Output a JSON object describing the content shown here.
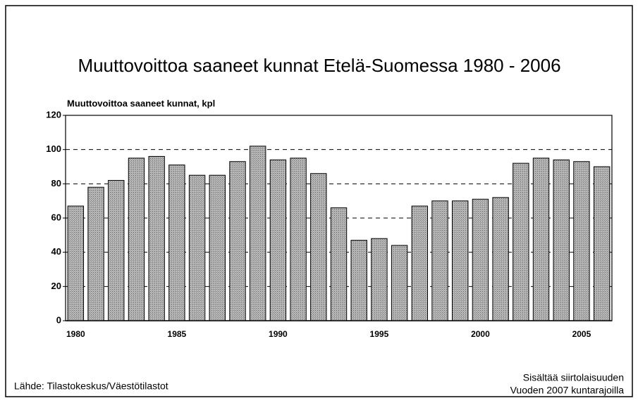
{
  "chart_data": {
    "type": "bar",
    "title": "Muuttovoittoa saaneet kunnat Etelä-Suomessa 1980 - 2006",
    "y_axis_label": "Muuttovoittoa saaneet kunnat, kpl",
    "categories": [
      "1980",
      null,
      null,
      null,
      null,
      "1985",
      null,
      null,
      null,
      null,
      "1990",
      null,
      null,
      null,
      null,
      "1995",
      null,
      null,
      null,
      null,
      "2000",
      null,
      null,
      null,
      null,
      "2005",
      null
    ],
    "values": [
      67,
      78,
      82,
      95,
      96,
      91,
      85,
      85,
      93,
      102,
      94,
      95,
      86,
      66,
      47,
      48,
      44,
      67,
      70,
      70,
      71,
      72,
      92,
      95,
      94,
      93,
      90
    ],
    "color": "#a9a9a9",
    "ylim": [
      0,
      120
    ],
    "yticks": [
      0,
      20,
      40,
      60,
      80,
      100,
      120
    ],
    "grid": true,
    "source": "Lähde: Tilastokeskus/Väestötilastot",
    "notes": [
      "Sisältää siirtolaisuuden",
      "Vuoden 2007 kuntarajoilla"
    ]
  }
}
